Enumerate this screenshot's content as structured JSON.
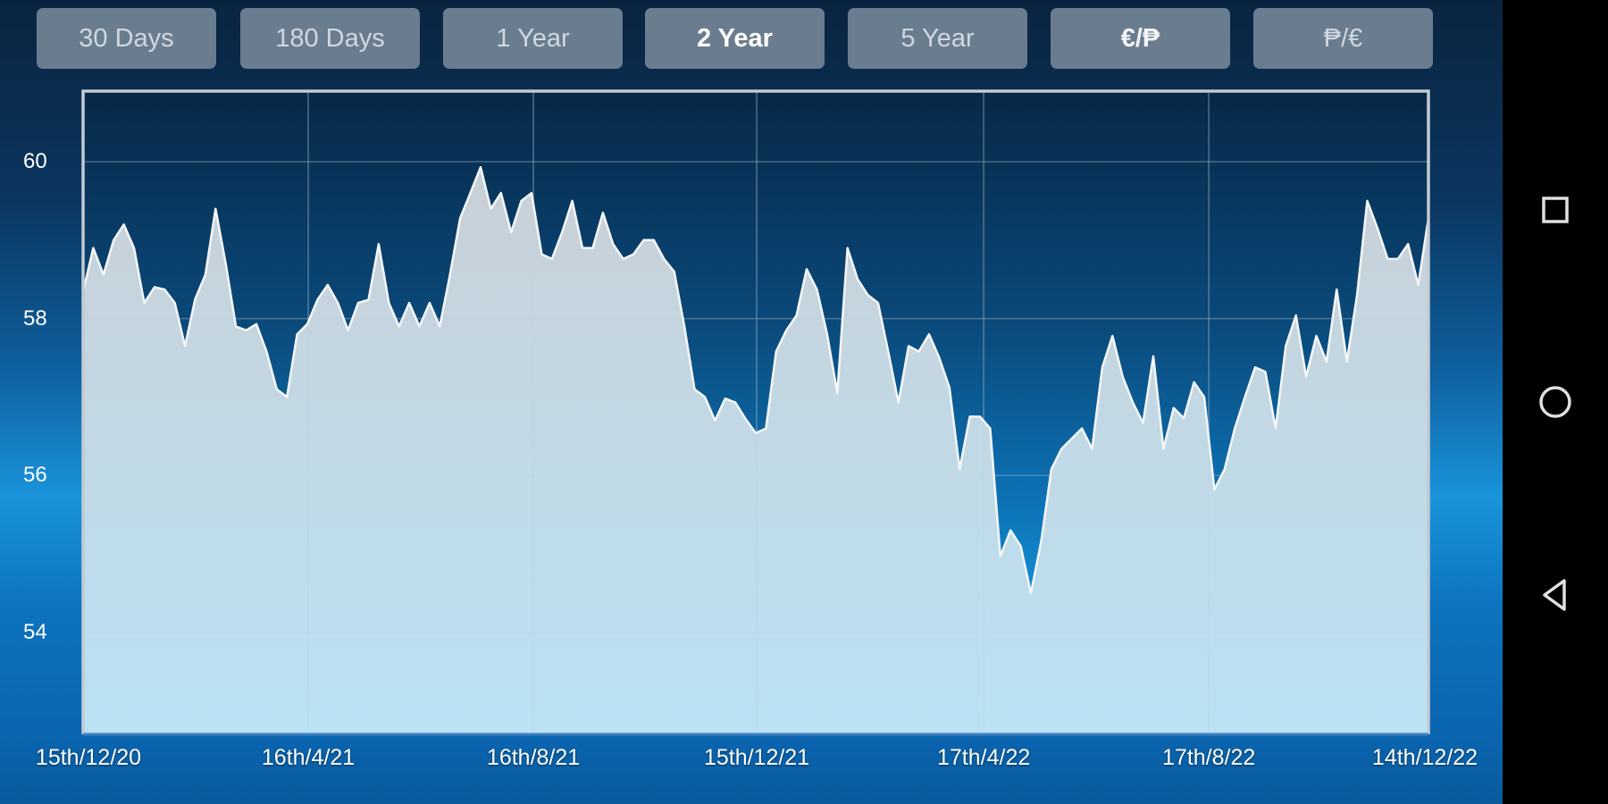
{
  "range_buttons": [
    {
      "label": "30 Days",
      "selected": false
    },
    {
      "label": "180 Days",
      "selected": false
    },
    {
      "label": "1 Year",
      "selected": false
    },
    {
      "label": "2 Year",
      "selected": true
    },
    {
      "label": "5 Year",
      "selected": false
    }
  ],
  "currency_buttons": [
    {
      "label": "€/₱",
      "selected": true
    },
    {
      "label": "₱/€",
      "selected": false
    }
  ],
  "colors": {
    "line": "#f4f6f8",
    "fill_top": "#c9d0d7",
    "fill_bottom": "#b9e2f4",
    "grid": "#c0cfdc",
    "button_bg": "#6a7d8f"
  },
  "nav": {
    "recents": "square-icon",
    "home": "circle-icon",
    "back": "triangle-back-icon"
  },
  "chart_data": {
    "type": "area",
    "title": "",
    "xlabel": "",
    "ylabel": "",
    "xlim": [
      "2020-12-15",
      "2022-12-14"
    ],
    "ylim": [
      52.7,
      60.9
    ],
    "grid": true,
    "x_ticks": [
      {
        "date": "2020-12-15",
        "label": "15th/12/20"
      },
      {
        "date": "2021-04-16",
        "label": "16th/4/21"
      },
      {
        "date": "2021-08-16",
        "label": "16th/8/21"
      },
      {
        "date": "2021-12-15",
        "label": "15th/12/21"
      },
      {
        "date": "2022-04-17",
        "label": "17th/4/22"
      },
      {
        "date": "2022-08-17",
        "label": "17th/8/22"
      },
      {
        "date": "2022-12-14",
        "label": "14th/12/22"
      }
    ],
    "y_ticks": [
      {
        "value": 54,
        "label": "54"
      },
      {
        "value": 56,
        "label": "56"
      },
      {
        "value": 58,
        "label": "58"
      },
      {
        "value": 60,
        "label": "60"
      }
    ],
    "values": [
      58.34,
      58.9,
      58.56,
      59.0,
      59.2,
      58.9,
      58.2,
      58.4,
      58.37,
      58.2,
      57.65,
      58.25,
      58.56,
      59.4,
      58.7,
      57.9,
      57.85,
      57.93,
      57.58,
      57.1,
      57.0,
      57.8,
      57.93,
      58.24,
      58.43,
      58.2,
      57.85,
      58.2,
      58.24,
      58.95,
      58.2,
      57.9,
      58.2,
      57.9,
      58.2,
      57.9,
      58.56,
      59.28,
      59.6,
      59.93,
      59.4,
      59.6,
      59.1,
      59.5,
      59.6,
      58.82,
      58.76,
      59.1,
      59.5,
      58.9,
      58.9,
      59.35,
      58.95,
      58.76,
      58.82,
      59.0,
      59.0,
      58.76,
      58.6,
      57.9,
      57.1,
      57.0,
      56.7,
      56.98,
      56.93,
      56.72,
      56.54,
      56.6,
      57.58,
      57.85,
      58.04,
      58.63,
      58.37,
      57.8,
      57.05,
      58.9,
      58.5,
      58.3,
      58.2,
      57.58,
      56.93,
      57.65,
      57.58,
      57.8,
      57.5,
      57.12,
      56.08,
      56.75,
      56.75,
      56.6,
      54.97,
      55.3,
      55.1,
      54.5,
      55.16,
      56.08,
      56.34,
      56.47,
      56.6,
      56.34,
      57.38,
      57.78,
      57.26,
      56.93,
      56.67,
      57.52,
      56.34,
      56.86,
      56.73,
      57.19,
      57.0,
      55.82,
      56.08,
      56.6,
      57.0,
      57.38,
      57.32,
      56.6,
      57.65,
      58.04,
      57.26,
      57.78,
      57.45,
      58.37,
      57.45,
      58.3,
      59.5,
      59.15,
      58.76,
      58.76,
      58.95,
      58.43,
      59.28
    ]
  }
}
